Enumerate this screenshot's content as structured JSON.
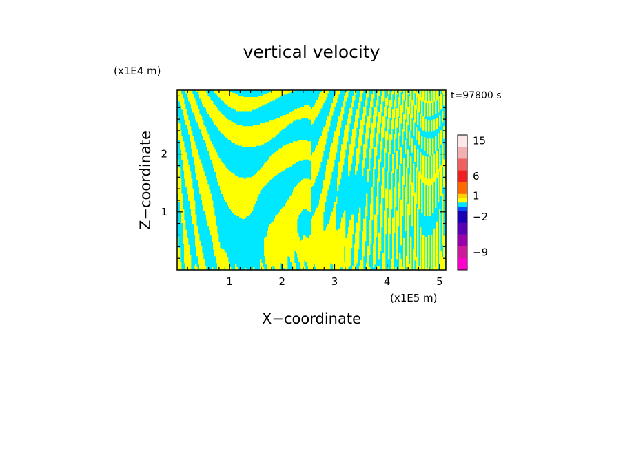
{
  "chart_data": {
    "type": "heatmap",
    "title": "vertical velocity",
    "xlabel": "X−coordinate",
    "ylabel": "Z−coordinate",
    "x_unit": "(x1E5 m)",
    "y_unit": "(x1E4 m)",
    "time_label": "t=97800 s",
    "xlim": [
      0.0,
      5.12
    ],
    "ylim": [
      0.0,
      3.1
    ],
    "xticks": [
      1,
      2,
      3,
      4,
      5
    ],
    "yticks": [
      1,
      2
    ],
    "xtick_labels": [
      "1",
      "2",
      "3",
      "4",
      "5"
    ],
    "ytick_labels": [
      "1",
      "2"
    ],
    "colorbar": {
      "labels": [
        {
          "text": "15",
          "value": 15
        },
        {
          "text": "6",
          "value": 6
        },
        {
          "text": "1",
          "value": 1
        },
        {
          "text": "−2",
          "value": -2
        },
        {
          "text": "−9",
          "value": -9
        }
      ],
      "levels": [
        {
          "value": -12,
          "color": "#ff00cc"
        },
        {
          "value": -9,
          "color": "#cc1a9a"
        },
        {
          "value": -6,
          "color": "#9900aa"
        },
        {
          "value": -4,
          "color": "#5a00b4"
        },
        {
          "value": -2,
          "color": "#1a00b4"
        },
        {
          "value": -1,
          "color": "#0050ff"
        },
        {
          "value": 0,
          "color": "#00e5ff"
        },
        {
          "value": 0.5,
          "color": "#ffff00"
        },
        {
          "value": 1,
          "color": "#ffd000"
        },
        {
          "value": 3,
          "color": "#ff6a00"
        },
        {
          "value": 6,
          "color": "#f01e1e"
        },
        {
          "value": 9,
          "color": "#f06060"
        },
        {
          "value": 12,
          "color": "#f4b0b0"
        },
        {
          "value": 15,
          "color": "#fce8e8"
        }
      ]
    },
    "dominant_colors": {
      "positive": "#ffff00",
      "negative": "#00e8ff"
    }
  }
}
